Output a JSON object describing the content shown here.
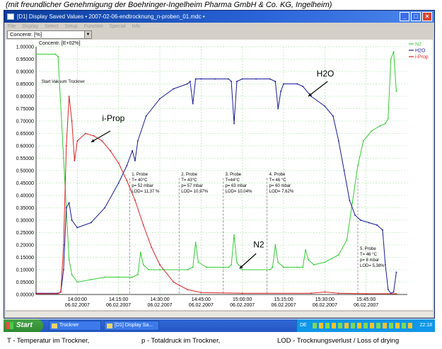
{
  "header_note": "(mit freundlicher Genehmigung der Boehringer-Ingelheim Pharma GmbH & Co. KG, Ingelheim)",
  "window": {
    "title": "[D1] Display Saved Values • 2007-02-06-endtrocknung_n-proben_01.mdc •",
    "menu": [
      "File",
      "Display",
      "Select",
      "Setup",
      "Function",
      "Special",
      "Info"
    ],
    "selector_value": "Concentr. [%]"
  },
  "chart_data": {
    "type": "line",
    "ylabel": "Concentr. [E+02%]",
    "ylim": [
      0,
      1
    ],
    "yticks": [
      "0.00000",
      "0.05000",
      "0.10000",
      "0.15000",
      "0.20000",
      "0.25000",
      "0.30000",
      "0.35000",
      "0.40000",
      "0.45000",
      "0.50000",
      "0.55000",
      "0.60000",
      "0.65000",
      "0.70000",
      "0.75000",
      "0.80000",
      "0.85000",
      "0.90000",
      "0.95000",
      "1.00000"
    ],
    "xlim": [
      "13:45",
      "16:00"
    ],
    "xticks": [
      {
        "time": "14:00:00",
        "date": "06.02.2007"
      },
      {
        "time": "14:15:00",
        "date": "06.02.2007"
      },
      {
        "time": "14:30:00",
        "date": "06.02.2007"
      },
      {
        "time": "14:45:00",
        "date": "06.02.2007"
      },
      {
        "time": "15:00:00",
        "date": "06.02.2007"
      },
      {
        "time": "15:15:00",
        "date": "06.02.2007"
      },
      {
        "time": "15:30:00",
        "date": "06.02.2007"
      },
      {
        "time": "15:45:00",
        "date": "06.02.2007"
      }
    ],
    "grid": true,
    "legend_position": "top-right",
    "series": [
      {
        "name": "N2",
        "color": "#33cc33",
        "points": [
          [
            "13:45",
            0.97
          ],
          [
            "13:52",
            0.97
          ],
          [
            "13:53",
            0.96
          ],
          [
            "13:55",
            0.55
          ],
          [
            "13:57",
            0.14
          ],
          [
            "13:58",
            0.08
          ],
          [
            "14:00",
            0.05
          ],
          [
            "14:05",
            0.06
          ],
          [
            "14:10",
            0.07
          ],
          [
            "14:15",
            0.07
          ],
          [
            "14:20",
            0.07
          ],
          [
            "14:22",
            0.08
          ],
          [
            "14:23",
            0.17
          ],
          [
            "14:24",
            0.12
          ],
          [
            "14:26",
            0.1
          ],
          [
            "14:30",
            0.1
          ],
          [
            "14:40",
            0.1
          ],
          [
            "14:42",
            0.11
          ],
          [
            "14:43",
            0.21
          ],
          [
            "14:44",
            0.13
          ],
          [
            "14:47",
            0.11
          ],
          [
            "14:55",
            0.11
          ],
          [
            "14:56",
            0.12
          ],
          [
            "14:57",
            0.24
          ],
          [
            "14:58",
            0.13
          ],
          [
            "15:00",
            0.1
          ],
          [
            "15:10",
            0.1
          ],
          [
            "15:11",
            0.11
          ],
          [
            "15:12",
            0.2
          ],
          [
            "15:13",
            0.13
          ],
          [
            "15:15",
            0.11
          ],
          [
            "15:20",
            0.11
          ],
          [
            "15:22",
            0.11
          ],
          [
            "15:23",
            0.18
          ],
          [
            "15:24",
            0.14
          ],
          [
            "15:26",
            0.12
          ],
          [
            "15:30",
            0.13
          ],
          [
            "15:35",
            0.16
          ],
          [
            "15:38",
            0.22
          ],
          [
            "15:40",
            0.37
          ],
          [
            "15:42",
            0.52
          ],
          [
            "15:44",
            0.62
          ],
          [
            "15:47",
            0.66
          ],
          [
            "15:50",
            0.68
          ],
          [
            "15:52",
            0.69
          ],
          [
            "15:53",
            0.71
          ],
          [
            "15:54",
            0.95
          ],
          [
            "15:55",
            0.98
          ],
          [
            "15:56",
            0.82
          ]
        ]
      },
      {
        "name": "H2O",
        "color": "#1a1a99",
        "points": [
          [
            "13:45",
            0.005
          ],
          [
            "13:53",
            0.005
          ],
          [
            "13:54",
            0.01
          ],
          [
            "13:55",
            0.1
          ],
          [
            "13:56",
            0.35
          ],
          [
            "13:57",
            0.37
          ],
          [
            "13:58",
            0.3
          ],
          [
            "14:00",
            0.27
          ],
          [
            "14:05",
            0.29
          ],
          [
            "14:10",
            0.35
          ],
          [
            "14:15",
            0.45
          ],
          [
            "14:18",
            0.52
          ],
          [
            "14:20",
            0.58
          ],
          [
            "14:21",
            0.54
          ],
          [
            "14:22",
            0.62
          ],
          [
            "14:25",
            0.72
          ],
          [
            "14:30",
            0.79
          ],
          [
            "14:35",
            0.83
          ],
          [
            "14:40",
            0.85
          ],
          [
            "14:41",
            0.86
          ],
          [
            "14:42",
            0.77
          ],
          [
            "14:43",
            0.87
          ],
          [
            "14:45",
            0.87
          ],
          [
            "14:50",
            0.87
          ],
          [
            "14:55",
            0.87
          ],
          [
            "14:56",
            0.86
          ],
          [
            "14:57",
            0.69
          ],
          [
            "14:58",
            0.86
          ],
          [
            "15:00",
            0.87
          ],
          [
            "15:05",
            0.87
          ],
          [
            "15:10",
            0.87
          ],
          [
            "15:12",
            0.86
          ],
          [
            "15:13",
            0.75
          ],
          [
            "15:14",
            0.82
          ],
          [
            "15:15",
            0.85
          ],
          [
            "15:20",
            0.85
          ],
          [
            "15:22",
            0.84
          ],
          [
            "15:25",
            0.8
          ],
          [
            "15:30",
            0.76
          ],
          [
            "15:33",
            0.72
          ],
          [
            "15:35",
            0.62
          ],
          [
            "15:37",
            0.5
          ],
          [
            "15:39",
            0.38
          ],
          [
            "15:41",
            0.32
          ],
          [
            "15:43",
            0.3
          ],
          [
            "15:46",
            0.29
          ],
          [
            "15:49",
            0.28
          ],
          [
            "15:51",
            0.26
          ],
          [
            "15:52",
            0.12
          ],
          [
            "15:53",
            0.02
          ],
          [
            "15:54",
            0.005
          ],
          [
            "15:55",
            0.01
          ],
          [
            "15:56",
            0.09
          ]
        ]
      },
      {
        "name": "i-Prop",
        "color": "#dd2222",
        "points": [
          [
            "13:45",
            0.003
          ],
          [
            "13:53",
            0.003
          ],
          [
            "13:54",
            0.01
          ],
          [
            "13:55",
            0.2
          ],
          [
            "13:56",
            0.6
          ],
          [
            "13:57",
            0.8
          ],
          [
            "13:58",
            0.7
          ],
          [
            "13:59",
            0.54
          ],
          [
            "14:00",
            0.62
          ],
          [
            "14:03",
            0.65
          ],
          [
            "14:06",
            0.64
          ],
          [
            "14:09",
            0.62
          ],
          [
            "14:12",
            0.58
          ],
          [
            "14:15",
            0.53
          ],
          [
            "14:18",
            0.46
          ],
          [
            "14:21",
            0.38
          ],
          [
            "14:24",
            0.28
          ],
          [
            "14:27",
            0.19
          ],
          [
            "14:30",
            0.12
          ],
          [
            "14:35",
            0.05
          ],
          [
            "14:40",
            0.02
          ],
          [
            "14:45",
            0.008
          ],
          [
            "15:00",
            0.005
          ],
          [
            "15:25",
            0.005
          ],
          [
            "15:30",
            0.01
          ],
          [
            "15:35",
            0.005
          ],
          [
            "15:45",
            0.003
          ],
          [
            "15:56",
            0.003
          ]
        ]
      }
    ],
    "annotations": {
      "series_labels": [
        {
          "text": "i-Prop",
          "time": "14:09",
          "value": 0.7
        },
        {
          "text": "H2O",
          "time": "15:27",
          "value": 0.88
        },
        {
          "text": "N2",
          "time": "15:04",
          "value": 0.19
        }
      ],
      "start_label": "Start Vakuum Trockner",
      "sample_markers": [
        {
          "time": "14:19",
          "lines": [
            "1. Probe",
            "T= 40°C",
            "p= 52 mbar",
            "LOD= 11,37 %"
          ]
        },
        {
          "time": "14:37",
          "lines": [
            "2. Probe",
            "T= 43°C",
            "p= 57 mbar",
            "LOD= 10,97%"
          ]
        },
        {
          "time": "14:53",
          "lines": [
            "3. Probe",
            "T=44°C",
            "p= 63 mbar",
            "LOD= 10,04%"
          ]
        },
        {
          "time": "15:09",
          "lines": [
            "4. Probe",
            "T= 46 °C",
            "p= 60 mbar",
            "LOD= 7,62%"
          ]
        },
        {
          "time": "15:42",
          "lines": [
            "5. Probe",
            "T= 46 °C",
            "p= 8 mbar",
            "LOD= 5,38%"
          ]
        }
      ]
    }
  },
  "taskbar": {
    "start_label": "Start",
    "items": [
      "Trockner",
      "[D1] Display Sa..."
    ],
    "tray_lang": "DE",
    "clock": "22:18"
  },
  "footer": {
    "left": "T - Temperatur im Trockner,",
    "mid": "p - Totaldruck im Trockner,",
    "right": "LOD -  Trocknungsverlust / Loss of drying"
  }
}
